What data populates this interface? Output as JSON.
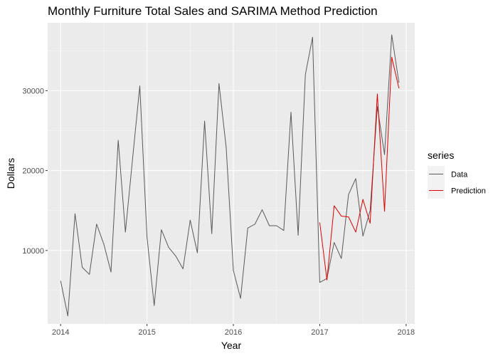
{
  "chart_data": {
    "type": "line",
    "title": "Monthly Furniture Total Sales and SARIMA Method Prediction",
    "xlabel": "Year",
    "ylabel": "Dollars",
    "xlim": [
      2013.85,
      2018.1
    ],
    "ylim": [
      800,
      38500
    ],
    "x_ticks": [
      2014,
      2015,
      2016,
      2017,
      2018
    ],
    "x_tick_labels": [
      "2014",
      "2015",
      "2016",
      "2017",
      "2018"
    ],
    "y_ticks": [
      10000,
      20000,
      30000
    ],
    "y_tick_labels": [
      "10000",
      "20000",
      "30000"
    ],
    "grid": true,
    "legend": {
      "title": "series",
      "placement": "right"
    },
    "series": [
      {
        "name": "Data",
        "color": "#595959",
        "x": [
          2014.0,
          2014.0833,
          2014.1667,
          2014.25,
          2014.3333,
          2014.4167,
          2014.5,
          2014.5833,
          2014.6667,
          2014.75,
          2014.8333,
          2014.9167,
          2015.0,
          2015.0833,
          2015.1667,
          2015.25,
          2015.3333,
          2015.4167,
          2015.5,
          2015.5833,
          2015.6667,
          2015.75,
          2015.8333,
          2015.9167,
          2016.0,
          2016.0833,
          2016.1667,
          2016.25,
          2016.3333,
          2016.4167,
          2016.5,
          2016.5833,
          2016.6667,
          2016.75,
          2016.8333,
          2016.9167,
          2017.0,
          2017.0833,
          2017.1667,
          2017.25,
          2017.3333,
          2017.4167,
          2017.5,
          2017.5833,
          2017.6667,
          2017.75,
          2017.8333,
          2017.9167
        ],
        "values": [
          6200,
          1800,
          14600,
          7900,
          7000,
          13300,
          10800,
          7300,
          23800,
          12300,
          21500,
          30600,
          11700,
          3100,
          12600,
          10400,
          9300,
          7700,
          13800,
          9700,
          26200,
          12100,
          30900,
          22900,
          7500,
          4000,
          12800,
          13300,
          15100,
          13100,
          13100,
          12500,
          27300,
          11900,
          32000,
          36700,
          6000,
          6500,
          11000,
          9000,
          17000,
          19000,
          11800,
          15000,
          28000,
          22000,
          37000,
          31000
        ]
      },
      {
        "name": "Prediction",
        "color": "#e00000",
        "x": [
          2017.0,
          2017.0833,
          2017.1667,
          2017.25,
          2017.3333,
          2017.4167,
          2017.5,
          2017.5833,
          2017.6667,
          2017.75,
          2017.8333,
          2017.9167
        ],
        "values": [
          13500,
          6300,
          15600,
          14300,
          14200,
          12300,
          16400,
          13400,
          29600,
          14900,
          34200,
          30300
        ]
      }
    ]
  }
}
